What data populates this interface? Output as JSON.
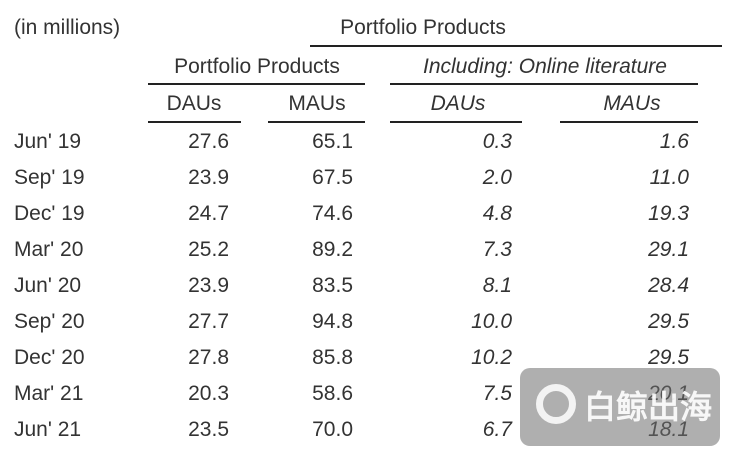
{
  "table": {
    "unit": "(in millions)",
    "title": "Portfolio Products",
    "groups": [
      "Portfolio Products",
      "Including: Online literature"
    ],
    "columns": [
      "DAUs",
      "MAUs",
      "DAUs",
      "MAUs"
    ],
    "rows": [
      [
        "Jun' 19",
        "27.6",
        "65.1",
        "0.3",
        "1.6"
      ],
      [
        "Sep' 19",
        "23.9",
        "67.5",
        "2.0",
        "11.0"
      ],
      [
        "Dec' 19",
        "24.7",
        "74.6",
        "4.8",
        "19.3"
      ],
      [
        "Mar' 20",
        "25.2",
        "89.2",
        "7.3",
        "29.1"
      ],
      [
        "Jun' 20",
        "23.9",
        "83.5",
        "8.1",
        "28.4"
      ],
      [
        "Sep' 20",
        "27.7",
        "94.8",
        "10.0",
        "29.5"
      ],
      [
        "Dec' 20",
        "27.8",
        "85.8",
        "10.2",
        "29.5"
      ],
      [
        "Mar' 21",
        "20.3",
        "58.6",
        "7.5",
        "20.1"
      ],
      [
        "Jun' 21",
        "23.5",
        "70.0",
        "6.7",
        "18.1"
      ]
    ]
  },
  "watermark": {
    "text": "白鲸出海"
  }
}
